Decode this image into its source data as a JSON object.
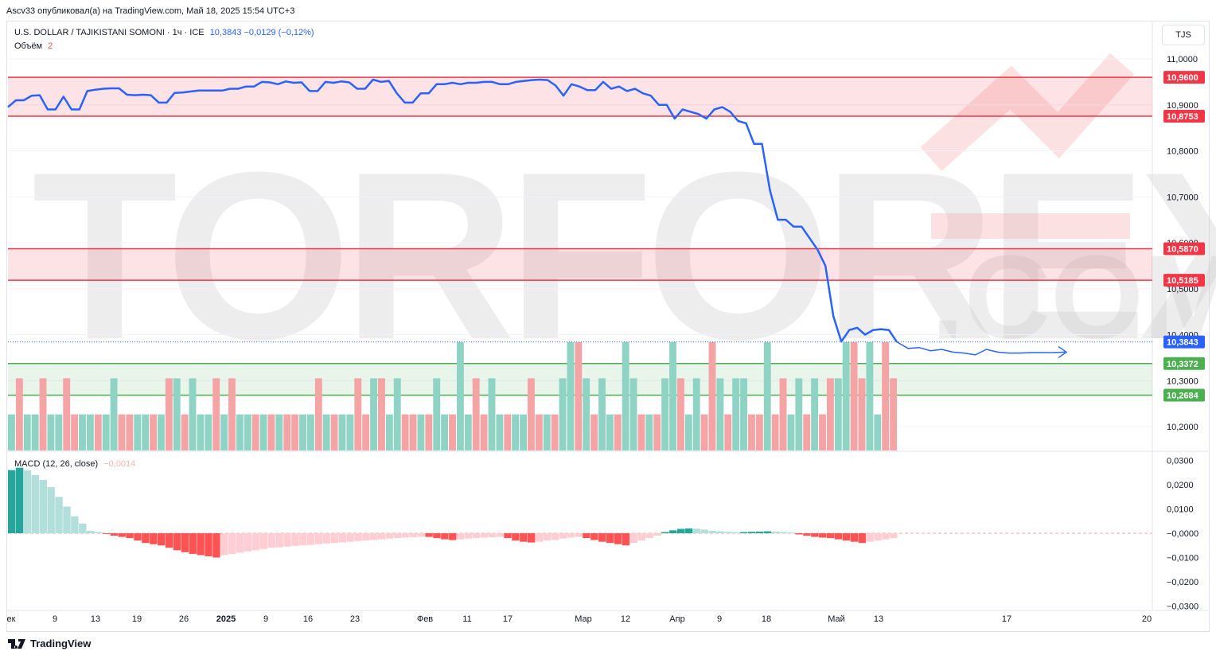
{
  "header": {
    "published": "Ascv33 опубликовал(а) на TradingView.com, Май 18, 2025 15:54 UTC+3"
  },
  "legend": {
    "symbol": "U.S. DOLLAR / TAJIKISTANI SOMONI · 1ч · ICE",
    "price_info": "10,3843  −0,0129 (−0,12%)",
    "volume_label": "Объём",
    "volume_value": "2",
    "macd_label": "MACD (12, 26, close)",
    "macd_value": "−0,0014"
  },
  "currency_button": "TJS",
  "watermark": {
    "main": "TORFOREX",
    "sub": ".COM"
  },
  "footer": {
    "brand": "TradingView"
  },
  "colors": {
    "price_line": "#2962ff",
    "resistance": "#f23645",
    "support": "#4caf50",
    "vol_up": "#8fd3c4",
    "vol_down": "#f4a4a4",
    "macd_pos_strong": "#26a69a",
    "macd_pos_weak": "#b2dfdb",
    "macd_neg_strong": "#ff5252",
    "macd_neg_weak": "#ffcdd2"
  },
  "chart_data": [
    {
      "type": "line",
      "ylim": [
        10.162,
        11.025
      ],
      "y_ticks": [
        {
          "value": 11.0,
          "label": "11,0000"
        },
        {
          "value": 10.9,
          "label": "10,9000"
        },
        {
          "value": 10.8,
          "label": "10,8000"
        },
        {
          "value": 10.7,
          "label": "10,7000"
        },
        {
          "value": 10.6,
          "label": "10,6000"
        },
        {
          "value": 10.5,
          "label": "10,5000"
        },
        {
          "value": 10.4,
          "label": "10,4000"
        },
        {
          "value": 10.3,
          "label": "10,3000"
        },
        {
          "value": 10.2,
          "label": "10,2000"
        }
      ],
      "x_ticks": [
        {
          "label": "ек",
          "bold": false
        },
        {
          "label": "9",
          "bold": false
        },
        {
          "label": "13",
          "bold": false
        },
        {
          "label": "19",
          "bold": false
        },
        {
          "label": "26",
          "bold": false
        },
        {
          "label": "2025",
          "bold": true
        },
        {
          "label": "9",
          "bold": false
        },
        {
          "label": "16",
          "bold": false
        },
        {
          "label": "23",
          "bold": false
        },
        {
          "label": "Фев",
          "bold": false
        },
        {
          "label": "11",
          "bold": false
        },
        {
          "label": "17",
          "bold": false
        },
        {
          "label": "Мар",
          "bold": false
        },
        {
          "label": "12",
          "bold": false
        },
        {
          "label": "Апр",
          "bold": false
        },
        {
          "label": "9",
          "bold": false
        },
        {
          "label": "18",
          "bold": false
        },
        {
          "label": "Май",
          "bold": false
        },
        {
          "label": "13",
          "bold": false
        },
        {
          "label": "17",
          "bold": false
        },
        {
          "label": "20",
          "bold": false
        }
      ],
      "zones": [
        {
          "from": 10.8753,
          "to": 10.96,
          "kind": "resistance"
        },
        {
          "from": 10.5185,
          "to": 10.587,
          "kind": "resistance"
        },
        {
          "from": 10.2684,
          "to": 10.3372,
          "kind": "support"
        }
      ],
      "level_labels": [
        {
          "value": 10.96,
          "label": "10,9600",
          "kind": "resistance"
        },
        {
          "value": 10.8753,
          "label": "10,8753",
          "kind": "resistance"
        },
        {
          "value": 10.587,
          "label": "10,5870",
          "kind": "resistance"
        },
        {
          "value": 10.5185,
          "label": "10,5185",
          "kind": "resistance"
        },
        {
          "value": 10.3843,
          "label": "10,3843",
          "kind": "current"
        },
        {
          "value": 10.3372,
          "label": "10,3372",
          "kind": "support"
        },
        {
          "value": 10.2684,
          "label": "10,2684",
          "kind": "support"
        }
      ],
      "current_price": 10.3843,
      "series": [
        {
          "values": [
            10.895,
            10.91,
            10.91,
            10.92,
            10.921,
            10.89,
            10.89,
            10.918,
            10.89,
            10.89,
            10.93,
            10.933,
            10.935,
            10.936,
            10.936,
            10.922,
            10.921,
            10.922,
            10.921,
            10.905,
            10.905,
            10.926,
            10.927,
            10.929,
            10.931,
            10.931,
            10.931,
            10.931,
            10.935,
            10.935,
            10.94,
            10.94,
            10.95,
            10.949,
            10.945,
            10.951,
            10.948,
            10.949,
            10.93,
            10.93,
            10.95,
            10.948,
            10.951,
            10.949,
            10.935,
            10.935,
            10.955,
            10.95,
            10.952,
            10.925,
            10.905,
            10.905,
            10.925,
            10.925,
            10.945,
            10.945,
            10.948,
            10.945,
            10.948,
            10.948,
            10.95,
            10.95,
            10.945,
            10.945,
            10.95,
            10.952,
            10.954,
            10.955,
            10.954,
            10.942,
            10.92,
            10.945,
            10.94,
            10.932,
            10.932,
            10.95,
            10.935,
            10.94,
            10.93,
            10.935,
            10.925,
            10.92,
            10.9,
            10.9,
            10.87,
            10.89,
            10.885,
            10.88,
            10.87,
            10.89,
            10.895,
            10.885,
            10.865,
            10.86,
            10.815,
            10.815,
            10.715,
            10.65,
            10.65,
            10.635,
            10.635,
            10.61,
            10.585,
            10.55,
            10.44,
            10.385,
            10.41,
            10.415,
            10.4,
            10.41,
            10.412,
            10.41,
            10.384
          ]
        }
      ],
      "projection": [
        10.3843,
        10.37,
        10.372,
        10.365,
        10.368,
        10.362,
        10.36,
        10.356,
        10.368,
        10.362,
        10.36,
        10.36,
        10.361,
        10.361,
        10.361,
        10.362
      ],
      "volume": {
        "up": [
          true,
          false,
          true,
          true,
          false,
          true,
          true,
          false,
          false,
          true,
          true,
          false,
          true,
          true,
          false,
          false,
          true,
          true,
          false,
          true,
          false,
          true,
          false,
          true,
          true,
          true,
          false,
          true,
          false,
          true,
          true,
          false,
          true,
          false,
          true,
          false,
          false,
          true,
          true,
          false,
          true,
          false,
          true,
          true,
          false,
          false,
          true,
          false,
          true,
          true,
          false,
          false,
          true,
          false,
          true,
          true,
          false,
          true,
          true,
          false,
          false,
          true,
          true,
          false,
          true,
          true,
          false,
          false,
          true,
          false,
          true,
          true,
          false,
          true,
          false,
          true,
          true,
          false,
          true,
          true,
          false,
          true,
          false,
          true,
          true,
          false,
          true,
          true,
          false,
          false,
          true,
          false,
          true,
          true,
          false,
          false,
          true,
          false,
          false,
          true,
          true,
          false,
          true,
          false,
          false,
          true,
          true,
          false,
          false,
          true,
          true,
          false,
          false
        ],
        "values": [
          1,
          2,
          1,
          1,
          2,
          1,
          1,
          2,
          1,
          1,
          1,
          1,
          1,
          2,
          1,
          1,
          1,
          1,
          1,
          1,
          2,
          2,
          1,
          2,
          1,
          1,
          2,
          1,
          2,
          1,
          1,
          1,
          1,
          1,
          1,
          1,
          1,
          1,
          1,
          2,
          1,
          1,
          1,
          1,
          2,
          1,
          2,
          2,
          1,
          2,
          1,
          1,
          1,
          1,
          2,
          1,
          1,
          3,
          1,
          2,
          1,
          2,
          1,
          1,
          1,
          1,
          2,
          1,
          1,
          1,
          2,
          3,
          3,
          2,
          1,
          2,
          1,
          1,
          3,
          2,
          1,
          1,
          1,
          2,
          3,
          2,
          1,
          2,
          1,
          3,
          2,
          1,
          2,
          2,
          1,
          1,
          3,
          1,
          2,
          1,
          2,
          1,
          2,
          1,
          2,
          2,
          3,
          3,
          2,
          3,
          1,
          3,
          2
        ],
        "max": 3
      },
      "macd": {
        "ylim": [
          -0.0325,
          0.0325
        ],
        "y_ticks": [
          {
            "value": 0.03,
            "label": "0,0300"
          },
          {
            "value": 0.02,
            "label": "0,0200"
          },
          {
            "value": 0.01,
            "label": "0,0100"
          },
          {
            "value": 0.0,
            "label": "−0,0000"
          },
          {
            "value": -0.01,
            "label": "−0,0100"
          },
          {
            "value": -0.02,
            "label": "−0,0200"
          },
          {
            "value": -0.03,
            "label": "−0,0300"
          }
        ],
        "values": [
          0.026,
          0.027,
          0.026,
          0.024,
          0.022,
          0.019,
          0.015,
          0.011,
          0.007,
          0.004,
          0.001,
          0.0005,
          -0.0003,
          -0.001,
          -0.0015,
          -0.002,
          -0.003,
          -0.004,
          -0.0045,
          -0.005,
          -0.006,
          -0.007,
          -0.0078,
          -0.0085,
          -0.009,
          -0.0095,
          -0.01,
          -0.009,
          -0.0085,
          -0.008,
          -0.0075,
          -0.007,
          -0.0065,
          -0.006,
          -0.0058,
          -0.0055,
          -0.0052,
          -0.005,
          -0.0048,
          -0.0045,
          -0.0042,
          -0.004,
          -0.0038,
          -0.0035,
          -0.0032,
          -0.003,
          -0.0028,
          -0.0025,
          -0.0022,
          -0.002,
          -0.0018,
          -0.0016,
          -0.0015,
          -0.0015,
          -0.002,
          -0.0025,
          -0.0028,
          -0.0025,
          -0.0022,
          -0.002,
          -0.0018,
          -0.0016,
          -0.0015,
          -0.002,
          -0.003,
          -0.0035,
          -0.0038,
          -0.0035,
          -0.003,
          -0.0028,
          -0.0022,
          -0.0018,
          -0.0015,
          -0.002,
          -0.0028,
          -0.0035,
          -0.004,
          -0.0045,
          -0.005,
          -0.004,
          -0.003,
          -0.002,
          -0.001,
          0.0005,
          0.0012,
          0.0018,
          0.002,
          0.0019,
          0.0015,
          0.001,
          0.0008,
          0.0006,
          0.0004,
          0.0005,
          0.0006,
          0.0007,
          0.0008,
          0.0007,
          0.0005,
          0.0003,
          -0.0005,
          -0.001,
          -0.0015,
          -0.0018,
          -0.002,
          -0.0025,
          -0.003,
          -0.0035,
          -0.004,
          -0.0035,
          -0.003,
          -0.0025,
          -0.002
        ]
      }
    }
  ]
}
